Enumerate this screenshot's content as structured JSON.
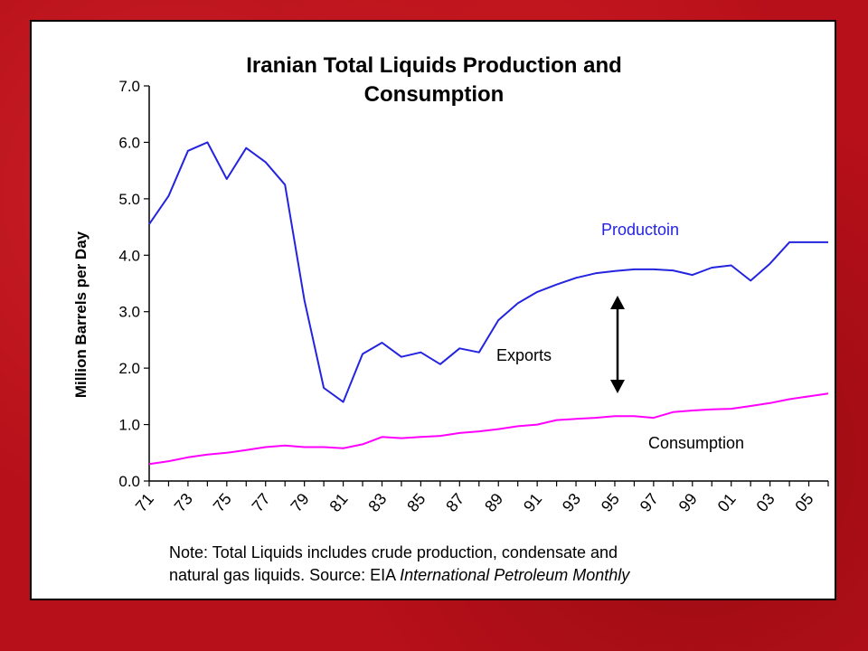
{
  "colors": {
    "background": "#b8101a",
    "production": "#2424e0",
    "consumption": "#ff00ff",
    "axis": "#000000"
  },
  "chart_data": {
    "type": "line",
    "title_lines": [
      "Iranian Total Liquids Production and",
      "Consumption"
    ],
    "ylabel": "Million Barrels per Day",
    "xlabel": "",
    "ylim": [
      0,
      7
    ],
    "y_ticks": [
      "0.0",
      "1.0",
      "2.0",
      "3.0",
      "4.0",
      "5.0",
      "6.0",
      "7.0"
    ],
    "x_tick_labels": [
      "71",
      "73",
      "75",
      "77",
      "79",
      "81",
      "83",
      "85",
      "87",
      "89",
      "91",
      "93",
      "95",
      "97",
      "99",
      "01",
      "03",
      "05"
    ],
    "x": [
      1971,
      1972,
      1973,
      1974,
      1975,
      1976,
      1977,
      1978,
      1979,
      1980,
      1981,
      1982,
      1983,
      1984,
      1985,
      1986,
      1987,
      1988,
      1989,
      1990,
      1991,
      1992,
      1993,
      1994,
      1995,
      1996,
      1997,
      1998,
      1999,
      2000,
      2001,
      2002,
      2003,
      2004,
      2005,
      2006
    ],
    "series": [
      {
        "name": "Productoin",
        "values": [
          4.55,
          5.05,
          5.85,
          6.0,
          5.35,
          5.9,
          5.65,
          5.25,
          3.2,
          1.65,
          1.4,
          2.25,
          2.45,
          2.2,
          2.28,
          2.07,
          2.35,
          2.28,
          2.85,
          3.15,
          3.35,
          3.48,
          3.6,
          3.68,
          3.72,
          3.75,
          3.75,
          3.73,
          3.65,
          3.78,
          3.82,
          3.55,
          3.85,
          4.23,
          4.23,
          4.23
        ]
      },
      {
        "name": "Consumption",
        "values": [
          0.3,
          0.35,
          0.42,
          0.47,
          0.5,
          0.55,
          0.6,
          0.63,
          0.6,
          0.6,
          0.58,
          0.65,
          0.78,
          0.76,
          0.78,
          0.8,
          0.85,
          0.88,
          0.92,
          0.97,
          1.0,
          1.08,
          1.1,
          1.12,
          1.15,
          1.15,
          1.12,
          1.22,
          1.25,
          1.27,
          1.28,
          1.33,
          1.38,
          1.45,
          1.5,
          1.55
        ]
      }
    ],
    "annotations": {
      "production_label": "Productoin",
      "exports_label": "Exports",
      "consumption_label": "Consumption"
    },
    "grid": false,
    "legend": "none"
  },
  "note": {
    "line1": "Note: Total Liquids includes crude production, condensate and",
    "line2_prefix": "natural gas liquids.  Source: EIA ",
    "line2_italic": "International Petroleum Monthly"
  }
}
